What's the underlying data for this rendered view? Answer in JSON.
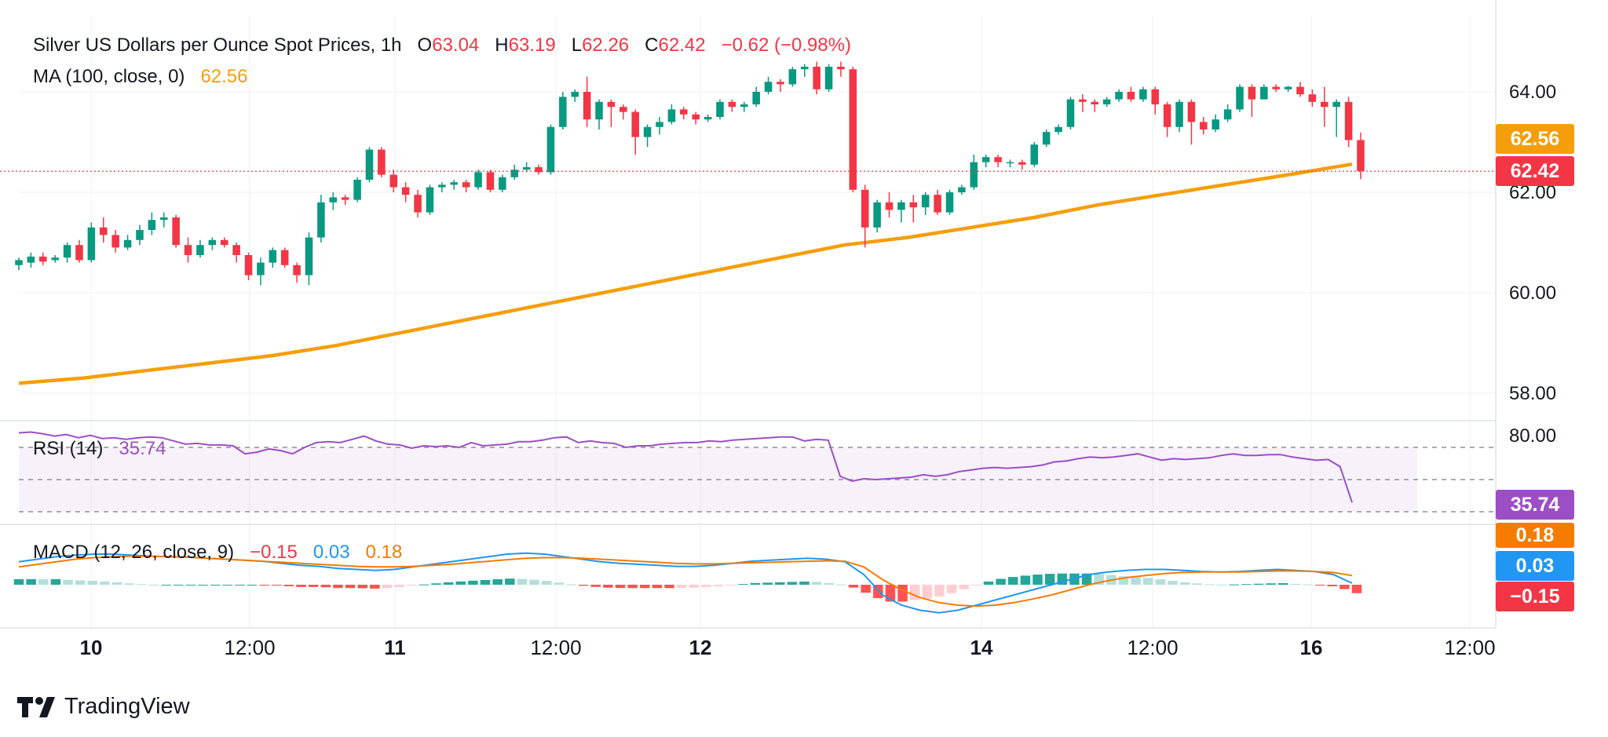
{
  "header": {
    "symbol": "Silver US Dollars per Ounce Spot Prices, 1h",
    "open_label": "O",
    "open_value": "63.04",
    "high_label": "H",
    "high_value": "63.19",
    "low_label": "L",
    "low_value": "62.26",
    "close_label": "C",
    "close_value": "62.42",
    "change": "−0.62 (−0.98%)",
    "ma_label": "MA (100, close, 0)",
    "ma_value": "62.56"
  },
  "rsi_header": {
    "label": "RSI (14)",
    "value": "35.74"
  },
  "macd_header": {
    "label": "MACD (12, 26, close, 9)",
    "hist": "−0.15",
    "macd": "0.03",
    "signal": "0.18"
  },
  "badges": {
    "ma": "62.56",
    "price": "62.42",
    "rsi": "35.74",
    "signal": "0.18",
    "macd": "0.03",
    "hist": "−0.15"
  },
  "yticks": [
    "64.00",
    "62.00",
    "60.00",
    "58.00"
  ],
  "rsi_tick": "80.00",
  "xticks": [
    {
      "label": "10",
      "bold": true
    },
    {
      "label": "12:00",
      "bold": false
    },
    {
      "label": "11",
      "bold": true
    },
    {
      "label": "12:00",
      "bold": false
    },
    {
      "label": "12",
      "bold": true
    },
    {
      "label": "14",
      "bold": true
    },
    {
      "label": "12:00",
      "bold": false
    },
    {
      "label": "16",
      "bold": true
    },
    {
      "label": "12:00",
      "bold": false
    }
  ],
  "brand": "TradingView",
  "colors": {
    "up": "#089981",
    "down": "#f23645",
    "ma": "#f59e0b",
    "rsi": "#9c4fc4",
    "macd": "#2196f3",
    "signal": "#f57c00"
  },
  "chart_data": {
    "type": "candlestick",
    "title": "Silver US Dollars per Ounce Spot Prices, 1h",
    "ylim": [
      57.5,
      65.6
    ],
    "candles": [
      [
        60.55,
        60.65,
        60.45,
        60.7
      ],
      [
        60.6,
        60.72,
        60.5,
        60.8
      ],
      [
        60.72,
        60.62,
        60.55,
        60.8
      ],
      [
        60.65,
        60.7,
        60.6,
        60.75
      ],
      [
        60.7,
        60.95,
        60.6,
        61.0
      ],
      [
        60.95,
        60.65,
        60.6,
        61.05
      ],
      [
        60.65,
        61.3,
        60.6,
        61.4
      ],
      [
        61.3,
        61.15,
        61.0,
        61.5
      ],
      [
        61.15,
        60.9,
        60.8,
        61.25
      ],
      [
        60.9,
        61.05,
        60.85,
        61.15
      ],
      [
        61.05,
        61.25,
        60.95,
        61.35
      ],
      [
        61.25,
        61.45,
        61.15,
        61.6
      ],
      [
        61.45,
        61.5,
        61.3,
        61.6
      ],
      [
        61.5,
        60.95,
        60.9,
        61.55
      ],
      [
        60.95,
        60.75,
        60.6,
        61.1
      ],
      [
        60.75,
        60.95,
        60.7,
        61.05
      ],
      [
        60.95,
        61.05,
        60.85,
        61.1
      ],
      [
        61.05,
        60.95,
        60.9,
        61.1
      ],
      [
        60.95,
        60.75,
        60.6,
        61.0
      ],
      [
        60.75,
        60.35,
        60.25,
        60.8
      ],
      [
        60.35,
        60.6,
        60.15,
        60.7
      ],
      [
        60.6,
        60.85,
        60.5,
        60.9
      ],
      [
        60.85,
        60.55,
        60.5,
        60.9
      ],
      [
        60.55,
        60.35,
        60.2,
        60.6
      ],
      [
        60.35,
        61.1,
        60.15,
        61.2
      ],
      [
        61.1,
        61.8,
        61.0,
        61.95
      ],
      [
        61.8,
        61.9,
        61.65,
        62.0
      ],
      [
        61.9,
        61.85,
        61.75,
        61.95
      ],
      [
        61.85,
        62.25,
        61.8,
        62.3
      ],
      [
        62.25,
        62.85,
        62.2,
        62.9
      ],
      [
        62.85,
        62.35,
        62.3,
        62.9
      ],
      [
        62.35,
        62.1,
        62.0,
        62.45
      ],
      [
        62.1,
        61.95,
        61.8,
        62.2
      ],
      [
        61.95,
        61.6,
        61.5,
        62.05
      ],
      [
        61.6,
        62.1,
        61.55,
        62.15
      ],
      [
        62.1,
        62.15,
        62.0,
        62.2
      ],
      [
        62.15,
        62.2,
        62.05,
        62.25
      ],
      [
        62.2,
        62.1,
        62.0,
        62.25
      ],
      [
        62.1,
        62.4,
        62.05,
        62.45
      ],
      [
        62.4,
        62.05,
        62.0,
        62.45
      ],
      [
        62.05,
        62.3,
        62.0,
        62.35
      ],
      [
        62.3,
        62.45,
        62.25,
        62.55
      ],
      [
        62.45,
        62.5,
        62.4,
        62.6
      ],
      [
        62.5,
        62.4,
        62.35,
        62.55
      ],
      [
        62.4,
        63.3,
        62.35,
        63.35
      ],
      [
        63.3,
        63.9,
        63.25,
        64.0
      ],
      [
        63.9,
        64.0,
        63.8,
        64.05
      ],
      [
        64.0,
        63.45,
        63.3,
        64.3
      ],
      [
        63.45,
        63.8,
        63.25,
        63.85
      ],
      [
        63.8,
        63.7,
        63.3,
        63.85
      ],
      [
        63.7,
        63.6,
        63.45,
        63.75
      ],
      [
        63.6,
        63.1,
        62.75,
        63.65
      ],
      [
        63.1,
        63.3,
        62.9,
        63.35
      ],
      [
        63.3,
        63.4,
        63.15,
        63.5
      ],
      [
        63.4,
        63.65,
        63.35,
        63.75
      ],
      [
        63.65,
        63.55,
        63.45,
        63.7
      ],
      [
        63.55,
        63.45,
        63.35,
        63.6
      ],
      [
        63.45,
        63.5,
        63.4,
        63.55
      ],
      [
        63.5,
        63.8,
        63.45,
        63.85
      ],
      [
        63.8,
        63.7,
        63.6,
        63.85
      ],
      [
        63.7,
        63.75,
        63.6,
        63.8
      ],
      [
        63.75,
        64.0,
        63.7,
        64.1
      ],
      [
        64.0,
        64.2,
        63.95,
        64.3
      ],
      [
        64.2,
        64.15,
        64.0,
        64.25
      ],
      [
        64.15,
        64.45,
        64.1,
        64.5
      ],
      [
        64.45,
        64.5,
        64.3,
        64.55
      ],
      [
        64.5,
        64.05,
        63.95,
        64.6
      ],
      [
        64.05,
        64.5,
        64.0,
        64.55
      ],
      [
        64.5,
        64.45,
        64.3,
        64.6
      ],
      [
        64.45,
        62.05,
        62.0,
        64.5
      ],
      [
        62.05,
        61.3,
        60.9,
        62.15
      ],
      [
        61.3,
        61.8,
        61.2,
        61.85
      ],
      [
        61.8,
        61.65,
        61.5,
        62.0
      ],
      [
        61.65,
        61.8,
        61.4,
        61.85
      ],
      [
        61.8,
        61.7,
        61.4,
        61.95
      ],
      [
        61.7,
        61.95,
        61.55,
        62.0
      ],
      [
        61.95,
        61.6,
        61.55,
        62.05
      ],
      [
        61.6,
        62.0,
        61.55,
        62.05
      ],
      [
        62.0,
        62.1,
        61.95,
        62.15
      ],
      [
        62.1,
        62.6,
        62.05,
        62.75
      ],
      [
        62.6,
        62.7,
        62.5,
        62.75
      ],
      [
        62.7,
        62.6,
        62.5,
        62.75
      ],
      [
        62.6,
        62.6,
        62.5,
        62.65
      ],
      [
        62.6,
        62.55,
        62.45,
        62.65
      ],
      [
        62.55,
        62.95,
        62.5,
        63.0
      ],
      [
        62.95,
        63.2,
        62.9,
        63.25
      ],
      [
        63.2,
        63.3,
        63.15,
        63.35
      ],
      [
        63.3,
        63.85,
        63.25,
        63.9
      ],
      [
        63.85,
        63.8,
        63.6,
        63.95
      ],
      [
        63.8,
        63.75,
        63.6,
        63.85
      ],
      [
        63.75,
        63.85,
        63.7,
        63.9
      ],
      [
        63.85,
        64.0,
        63.8,
        64.05
      ],
      [
        64.0,
        63.85,
        63.8,
        64.1
      ],
      [
        63.85,
        64.05,
        63.8,
        64.1
      ],
      [
        64.05,
        63.75,
        63.55,
        64.1
      ],
      [
        63.75,
        63.3,
        63.1,
        63.8
      ],
      [
        63.3,
        63.8,
        63.2,
        63.85
      ],
      [
        63.8,
        63.4,
        62.95,
        63.85
      ],
      [
        63.4,
        63.25,
        63.15,
        63.5
      ],
      [
        63.25,
        63.45,
        63.2,
        63.55
      ],
      [
        63.45,
        63.65,
        63.4,
        63.75
      ],
      [
        63.65,
        64.1,
        63.6,
        64.15
      ],
      [
        64.1,
        63.85,
        63.5,
        64.15
      ],
      [
        63.85,
        64.1,
        63.85,
        64.15
      ],
      [
        64.1,
        64.05,
        64.0,
        64.15
      ],
      [
        64.05,
        64.1,
        64.0,
        64.12
      ],
      [
        64.1,
        63.95,
        63.9,
        64.2
      ],
      [
        63.95,
        63.8,
        63.7,
        64.05
      ],
      [
        63.8,
        63.7,
        63.3,
        64.1
      ],
      [
        63.7,
        63.8,
        63.1,
        63.85
      ],
      [
        63.8,
        63.04,
        62.9,
        63.9
      ],
      [
        63.04,
        62.42,
        62.26,
        63.19
      ]
    ],
    "ma": [
      58.2,
      58.3,
      58.45,
      58.6,
      58.75,
      58.95,
      59.2,
      59.45,
      59.7,
      59.95,
      60.2,
      60.45,
      60.7,
      60.95,
      61.1,
      61.3,
      61.5,
      61.75,
      61.95,
      62.15,
      62.35,
      62.56
    ],
    "rsi": [
      79,
      79.5,
      78.5,
      77,
      78,
      76,
      77.5,
      75.5,
      76,
      75,
      76,
      76.5,
      76,
      74,
      72,
      72.5,
      71.5,
      71.5,
      71,
      66,
      67,
      69,
      68,
      66,
      70,
      73,
      73.5,
      73,
      75,
      77,
      74,
      72,
      71.5,
      69.5,
      71,
      70.5,
      71,
      70,
      73,
      71,
      71.5,
      72,
      73.5,
      73.5,
      74.5,
      76,
      76.5,
      73,
      74,
      73,
      72.5,
      70,
      71,
      71,
      72,
      72.5,
      73,
      73,
      74,
      73.5,
      74.5,
      75,
      75.5,
      76,
      76.5,
      76.5,
      74,
      75,
      74.5,
      52,
      49,
      50.5,
      50,
      50.5,
      51,
      51.5,
      53,
      52,
      53,
      55,
      56,
      57,
      57.5,
      57,
      57.5,
      58,
      59,
      61,
      61.5,
      63,
      64,
      63.5,
      64,
      65,
      66,
      64,
      62,
      63,
      62.5,
      63,
      63.5,
      65,
      66,
      65,
      65,
      65.5,
      65.5,
      64,
      63,
      62,
      62.5,
      58,
      35.74
    ],
    "rsi_levels": [
      70,
      50,
      30
    ],
    "macd": [
      0.45,
      0.5,
      0.55,
      0.58,
      0.6,
      0.6,
      0.58,
      0.56,
      0.55,
      0.54,
      0.52,
      0.5,
      0.48,
      0.46,
      0.42,
      0.38,
      0.36,
      0.32,
      0.3,
      0.28,
      0.3,
      0.35,
      0.4,
      0.45,
      0.5,
      0.55,
      0.6,
      0.62,
      0.6,
      0.55,
      0.5,
      0.45,
      0.42,
      0.4,
      0.38,
      0.36,
      0.36,
      0.38,
      0.42,
      0.46,
      0.48,
      0.5,
      0.52,
      0.5,
      0.45,
      0.2,
      -0.2,
      -0.4,
      -0.5,
      -0.55,
      -0.5,
      -0.4,
      -0.3,
      -0.2,
      -0.1,
      0.0,
      0.1,
      0.2,
      0.25,
      0.28,
      0.3,
      0.3,
      0.28,
      0.26,
      0.25,
      0.26,
      0.28,
      0.3,
      0.28,
      0.26,
      0.2,
      0.03
    ],
    "signal": [
      0.35,
      0.4,
      0.45,
      0.5,
      0.53,
      0.55,
      0.56,
      0.56,
      0.55,
      0.54,
      0.52,
      0.5,
      0.48,
      0.46,
      0.44,
      0.42,
      0.4,
      0.38,
      0.36,
      0.35,
      0.35,
      0.36,
      0.38,
      0.4,
      0.43,
      0.46,
      0.49,
      0.52,
      0.53,
      0.53,
      0.52,
      0.5,
      0.48,
      0.46,
      0.44,
      0.42,
      0.41,
      0.41,
      0.42,
      0.43,
      0.44,
      0.45,
      0.46,
      0.47,
      0.46,
      0.35,
      0.1,
      -0.1,
      -0.25,
      -0.35,
      -0.4,
      -0.42,
      -0.4,
      -0.35,
      -0.28,
      -0.2,
      -0.1,
      0.0,
      0.08,
      0.14,
      0.18,
      0.22,
      0.24,
      0.25,
      0.25,
      0.25,
      0.26,
      0.27,
      0.27,
      0.26,
      0.24,
      0.18
    ],
    "macd_ylim": [
      -0.7,
      0.75
    ]
  }
}
